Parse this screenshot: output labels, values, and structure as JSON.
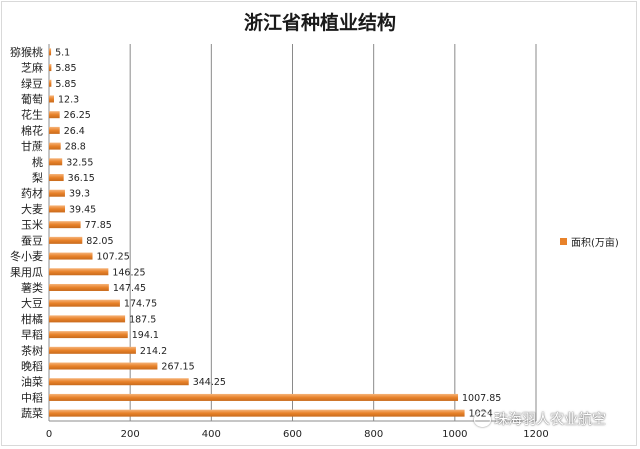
{
  "chart_data": {
    "type": "bar",
    "orientation": "horizontal",
    "title": "浙江省种植业结构",
    "categories": [
      "猕猴桃",
      "芝麻",
      "绿豆",
      "葡萄",
      "花生",
      "棉花",
      "甘蔗",
      "桃",
      "梨",
      "药材",
      "大麦",
      "玉米",
      "蚕豆",
      "冬小麦",
      "果用瓜",
      "薯类",
      "大豆",
      "柑橘",
      "早稻",
      "茶树",
      "晚稻",
      "油菜",
      "中稻",
      "蔬菜"
    ],
    "series": [
      {
        "name": "面积(万亩)",
        "values": [
          5.1,
          5.85,
          5.85,
          12.3,
          26.25,
          26.4,
          28.8,
          32.55,
          36.15,
          39.3,
          39.45,
          77.85,
          82.05,
          107.25,
          146.25,
          147.45,
          174.75,
          187.5,
          194.1,
          214.2,
          267.15,
          344.25,
          1007.85,
          1024
        ],
        "labels": [
          "5.1",
          "5.85",
          "5.85",
          "12.3",
          "26.25",
          "26.4",
          "28.8",
          "32.55",
          "36.15",
          "39.3",
          "39.45",
          "77.85",
          "82.05",
          "107.25",
          "146.25",
          "147.45",
          "174.75",
          "187.5",
          "194.1",
          "214.2",
          "267.15",
          "344.25",
          "1007.85",
          "1024"
        ]
      }
    ],
    "xlim": [
      0,
      1200
    ],
    "xticks": [
      "0",
      "200",
      "400",
      "600",
      "800",
      "1000",
      "1200"
    ],
    "grid": true,
    "legend_position": "right",
    "color": "#e8822a"
  },
  "watermark": {
    "text": "珠海羽人农业航空",
    "icon": "wechat-icon"
  }
}
